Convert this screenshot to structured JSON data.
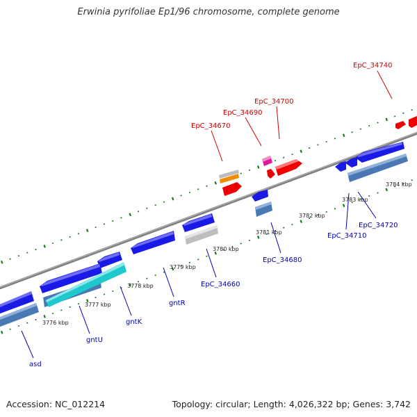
{
  "title": "Erwinia pyrifoliae Ep1/96 chromosome, complete genome",
  "footer": {
    "accession": "Accession: NC_012214",
    "stats": "Topology: circular; Length: 4,026,322 bp; Genes: 3,742"
  },
  "colors": {
    "backbone": "#808080",
    "tick": "#1a7a1a",
    "forward_label": "#cc0000",
    "reverse_label": "#0000b0",
    "kbp_label": "#222222",
    "gene_blue": "#1a1ae6",
    "gene_red": "#ee0000",
    "gene_steel": "#4a78b5",
    "gene_cyan": "#1ec8cc",
    "gene_grey": "#bdbdbd",
    "gene_orange": "#f08c00",
    "gene_magenta": "#e0189a"
  },
  "scale_labels": [
    "3776 kbp",
    "3777 kbp",
    "3778 kbp",
    "3779 kbp",
    "3780 kbp",
    "3781 kbp",
    "3782 kbp",
    "3783 kbp",
    "3784 kbp"
  ],
  "gene_labels": [
    {
      "text": "EpC_34740",
      "strand": "forward"
    },
    {
      "text": "EpC_34700",
      "strand": "forward"
    },
    {
      "text": "EpC_34690",
      "strand": "forward"
    },
    {
      "text": "EpC_34670",
      "strand": "forward"
    },
    {
      "text": "asd",
      "strand": "reverse"
    },
    {
      "text": "gntU",
      "strand": "reverse"
    },
    {
      "text": "gntK",
      "strand": "reverse"
    },
    {
      "text": "gntR",
      "strand": "reverse"
    },
    {
      "text": "EpC_34660",
      "strand": "reverse"
    },
    {
      "text": "EpC_34680",
      "strand": "reverse"
    },
    {
      "text": "EpC_34710",
      "strand": "reverse"
    },
    {
      "text": "EpC_34720",
      "strand": "reverse"
    }
  ]
}
